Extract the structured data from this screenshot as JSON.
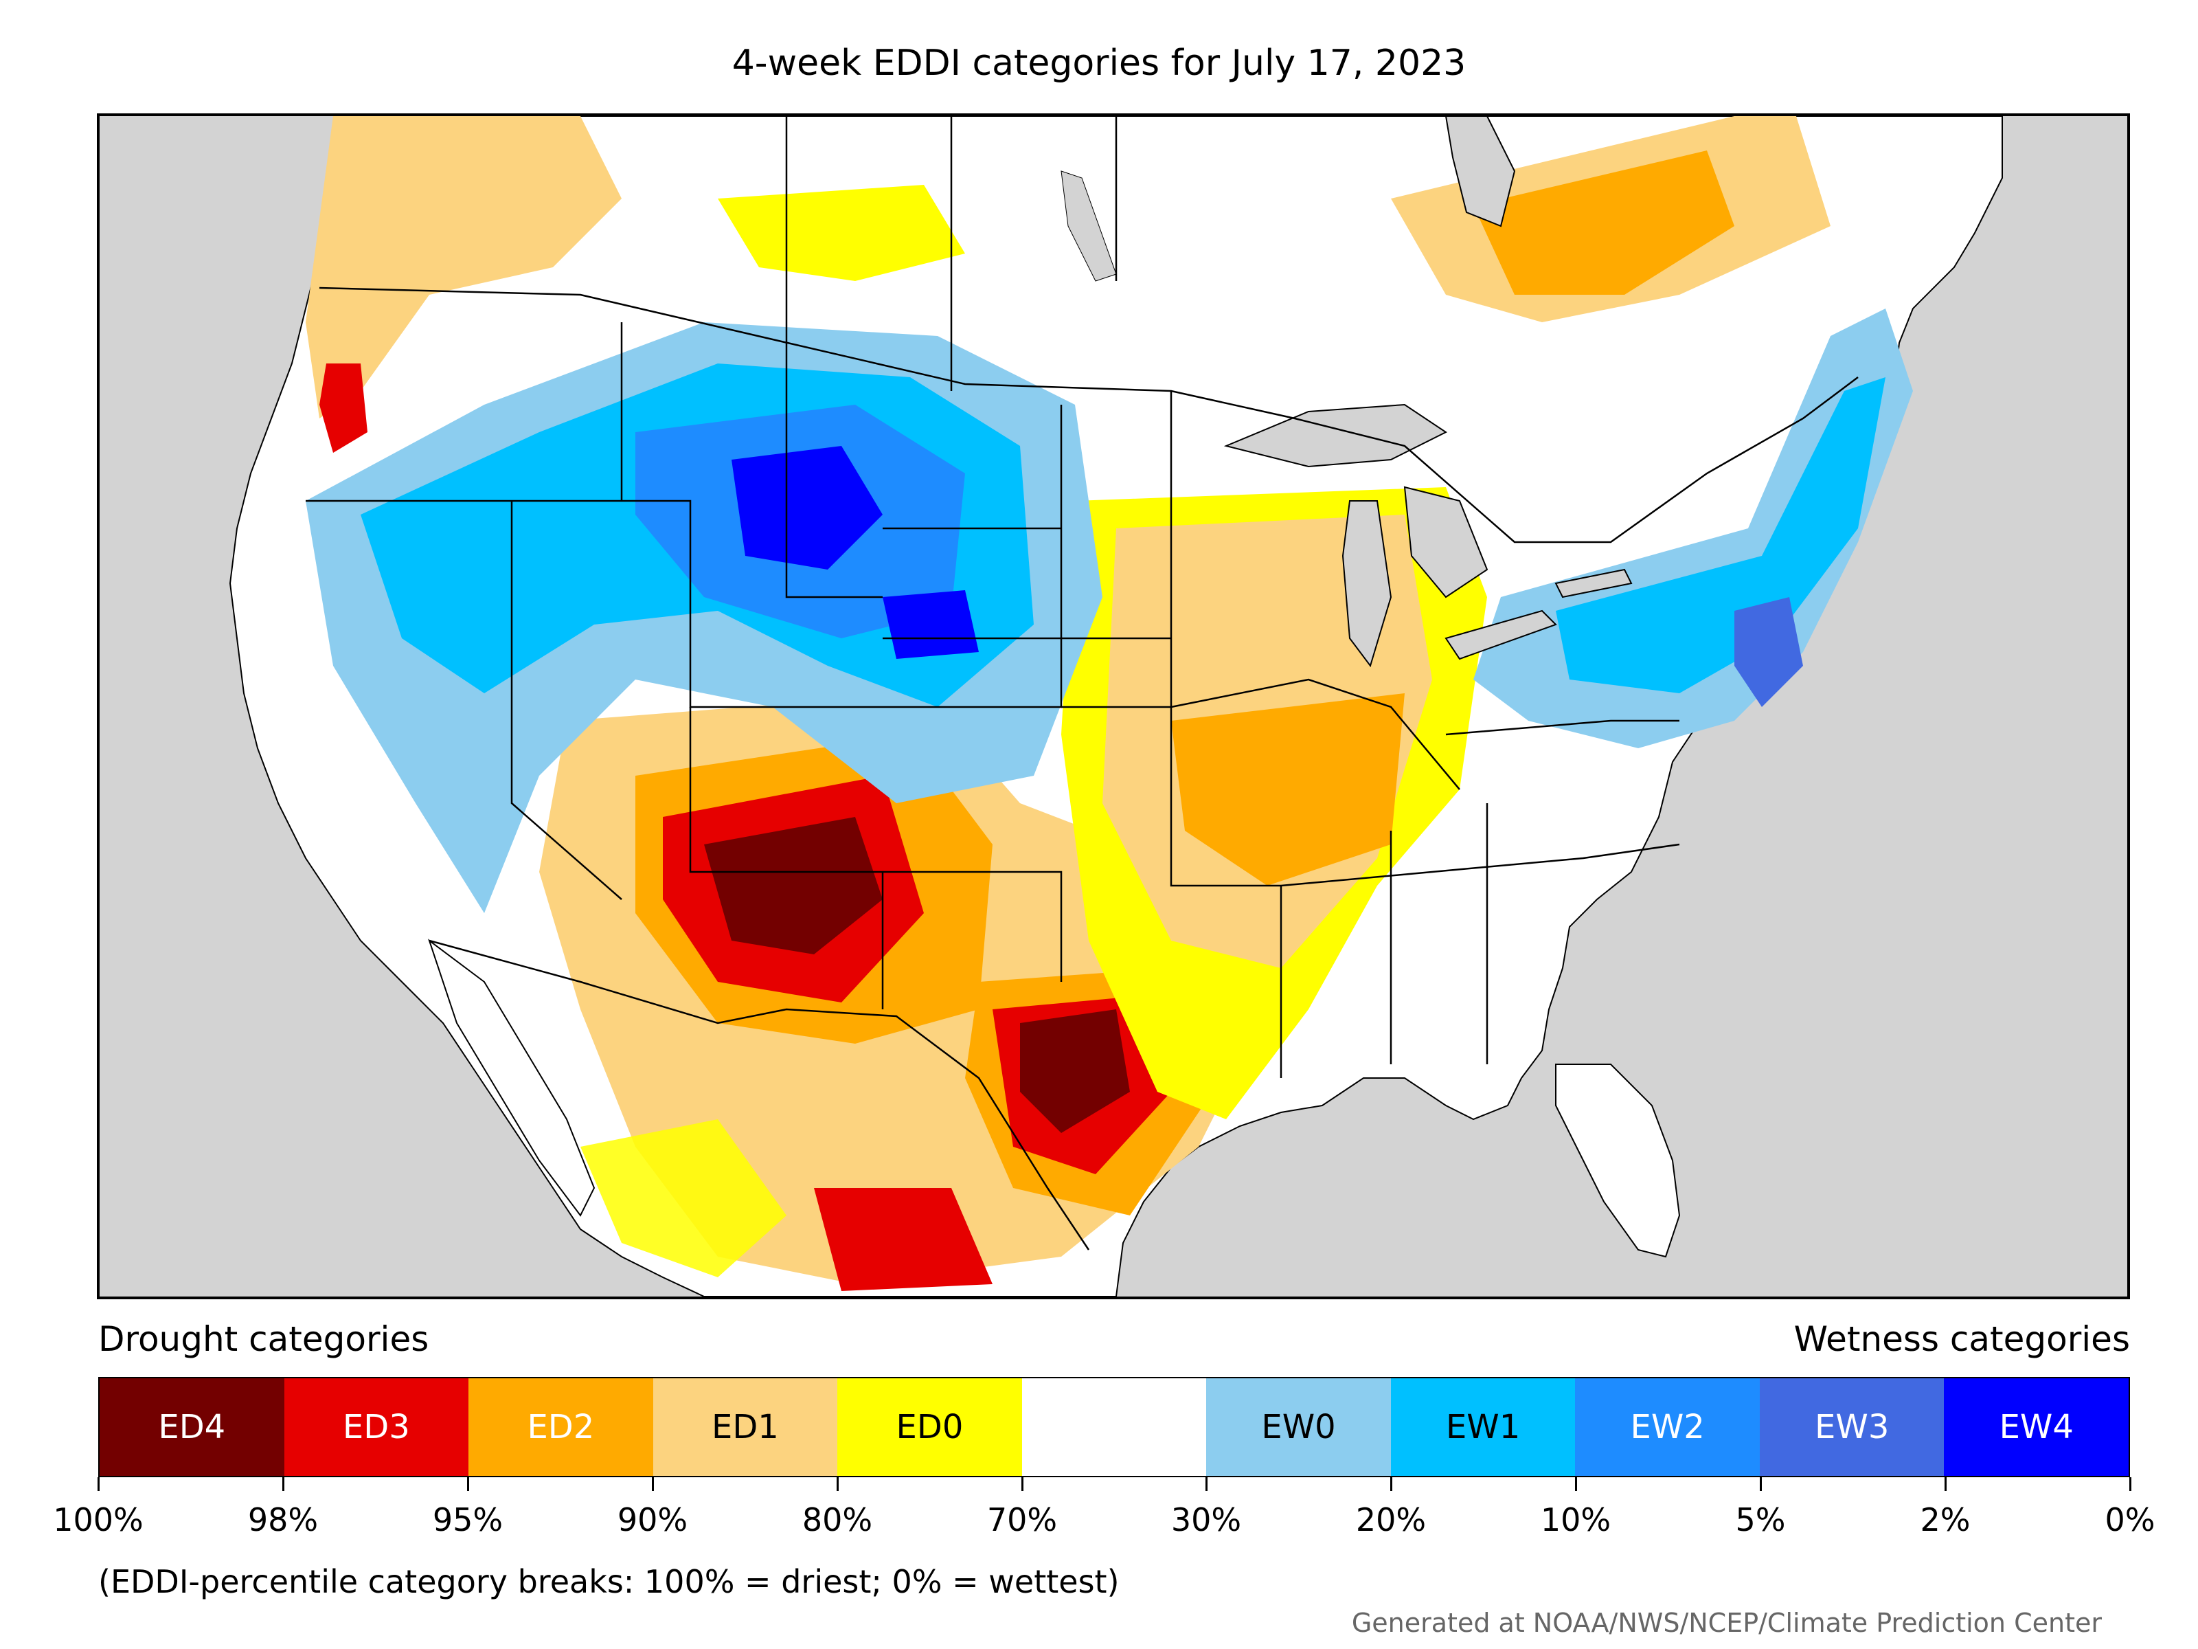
{
  "title": "4-week EDDI categories for July 17, 2023",
  "legend": {
    "drought_heading": "Drought categories",
    "wetness_heading": "Wetness categories",
    "categories": [
      {
        "label": "ED4",
        "color": "#730000",
        "text_color": "#ffffff"
      },
      {
        "label": "ED3",
        "color": "#e60000",
        "text_color": "#ffffff"
      },
      {
        "label": "ED2",
        "color": "#ffaa00",
        "text_color": "#ffffff"
      },
      {
        "label": "ED1",
        "color": "#fcd37f",
        "text_color": "#000000"
      },
      {
        "label": "ED0",
        "color": "#ffff00",
        "text_color": "#000000"
      },
      {
        "label": "",
        "color": "#ffffff",
        "text_color": "#000000"
      },
      {
        "label": "EW0",
        "color": "#8ccdef",
        "text_color": "#000000"
      },
      {
        "label": "EW1",
        "color": "#00c0ff",
        "text_color": "#000000"
      },
      {
        "label": "EW2",
        "color": "#1e8cff",
        "text_color": "#ffffff"
      },
      {
        "label": "EW3",
        "color": "#4169e1",
        "text_color": "#ffffff"
      },
      {
        "label": "EW4",
        "color": "#0000ff",
        "text_color": "#ffffff"
      }
    ],
    "ticks": [
      "100%",
      "98%",
      "95%",
      "90%",
      "80%",
      "70%",
      "30%",
      "20%",
      "10%",
      "5%",
      "2%",
      "0%"
    ]
  },
  "note": "(EDDI-percentile category breaks: 100% = driest; 0% = wettest)",
  "credit": "Generated at NOAA/NWS/NCEP/Climate Prediction Center",
  "map_colors": {
    "ocean": "#d3d3d3",
    "land": "#ffffff",
    "border": "#000000"
  }
}
